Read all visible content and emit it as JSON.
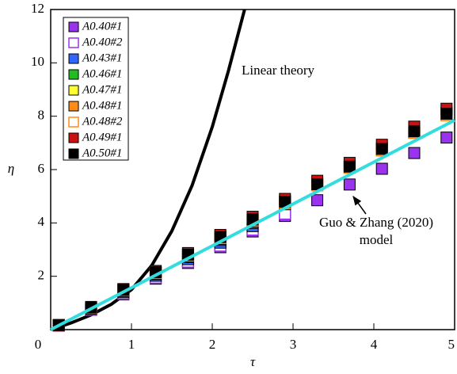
{
  "chart_data": {
    "type": "scatter",
    "x_label": "τ",
    "y_label": "η",
    "xlim": [
      0,
      5
    ],
    "ylim": [
      0,
      12
    ],
    "xticks": [
      0,
      1,
      2,
      3,
      4,
      5
    ],
    "yticks": [
      2,
      4,
      6,
      8,
      10,
      12
    ],
    "annotations": [
      "Linear theory",
      "Guo & Zhang (2020)",
      "model"
    ],
    "series": [
      {
        "name": "A0.40#1",
        "color": "#9933ee",
        "marker": "filled",
        "x": [
          0.1,
          0.5,
          0.9,
          1.3,
          1.7,
          2.1,
          2.5,
          2.9,
          3.3,
          3.7,
          4.1,
          4.5,
          4.9
        ],
        "values": [
          0.15,
          0.74,
          1.32,
          1.91,
          2.5,
          3.09,
          3.68,
          4.26,
          4.85,
          5.44,
          6.03,
          6.62,
          7.2
        ]
      },
      {
        "name": "A0.40#2",
        "color": "#9933ee",
        "marker": "open",
        "x": [
          0.1,
          0.5,
          0.9,
          1.3,
          1.7,
          2.1,
          2.5,
          2.9
        ],
        "values": [
          0.15,
          0.75,
          1.35,
          1.95,
          2.55,
          3.15,
          3.75,
          4.35
        ]
      },
      {
        "name": "A0.43#1",
        "color": "#3366ff",
        "marker": "filled",
        "x": [
          0.1,
          0.5,
          0.9,
          1.3,
          1.7,
          2.1,
          2.5
        ],
        "values": [
          0.16,
          0.78,
          1.4,
          2.02,
          2.64,
          3.26,
          3.88
        ]
      },
      {
        "name": "A0.46#1",
        "color": "#22bb22",
        "marker": "filled",
        "x": [
          0.1,
          0.5,
          0.9,
          1.3,
          1.7,
          2.1,
          2.5
        ],
        "values": [
          0.16,
          0.8,
          1.44,
          2.08,
          2.72,
          3.36,
          4.0
        ]
      },
      {
        "name": "A0.47#1",
        "color": "#ffff33",
        "marker": "filled",
        "x": [
          0.1,
          0.5,
          0.9,
          1.3,
          1.7,
          2.1,
          2.5,
          2.9,
          3.3,
          3.7,
          4.1,
          4.5,
          4.9
        ],
        "values": [
          0.17,
          0.83,
          1.49,
          2.16,
          2.82,
          3.49,
          4.15,
          4.81,
          5.48,
          6.14,
          6.81,
          7.47,
          8.13
        ]
      },
      {
        "name": "A0.48#1",
        "color": "#ff8c1a",
        "marker": "filled",
        "x": [
          0.1,
          0.5,
          0.9,
          1.3,
          1.7,
          2.1,
          2.5,
          2.9
        ],
        "values": [
          0.16,
          0.81,
          1.46,
          2.11,
          2.75,
          3.4,
          4.05,
          4.7
        ]
      },
      {
        "name": "A0.48#2",
        "color": "#ff8c1a",
        "marker": "open",
        "x": [
          0.1,
          0.5,
          0.9,
          1.3,
          1.7,
          2.1,
          2.5,
          2.9,
          3.3,
          3.7,
          4.1,
          4.5,
          4.9
        ],
        "values": [
          0.16,
          0.82,
          1.48,
          2.13,
          2.79,
          3.44,
          4.1,
          4.76,
          5.41,
          6.07,
          6.72,
          7.38,
          8.04
        ]
      },
      {
        "name": "A0.49#1",
        "color": "#cc1111",
        "marker": "filled",
        "x": [
          0.1,
          0.5,
          0.9,
          1.3,
          1.7,
          2.1,
          2.5,
          2.9,
          3.3,
          3.7,
          4.1,
          4.5,
          4.9
        ],
        "values": [
          0.17,
          0.85,
          1.52,
          2.2,
          2.87,
          3.55,
          4.23,
          4.9,
          5.58,
          6.25,
          6.93,
          7.61,
          8.28
        ]
      },
      {
        "name": "A0.50#1",
        "color": "#000000",
        "marker": "filled",
        "x": [
          0.1,
          0.5,
          0.9,
          1.3,
          1.7,
          2.1,
          2.5,
          2.9,
          3.3,
          3.7,
          4.1,
          4.5,
          4.9
        ],
        "values": [
          0.17,
          0.83,
          1.49,
          2.15,
          2.81,
          3.47,
          4.13,
          4.79,
          5.45,
          6.11,
          6.77,
          7.43,
          8.09
        ]
      }
    ],
    "lines": [
      {
        "color": "#000000",
        "x": [
          0,
          0.25,
          0.5,
          0.75,
          1,
          1.25,
          1.5,
          1.75,
          2,
          2.2,
          2.4
        ],
        "values": [
          0,
          0.25,
          0.55,
          0.95,
          1.5,
          2.4,
          3.7,
          5.4,
          7.6,
          9.7,
          12
        ]
      },
      {
        "color": "#33dddd",
        "x": [
          0,
          5
        ],
        "values": [
          0,
          7.85
        ]
      }
    ]
  }
}
